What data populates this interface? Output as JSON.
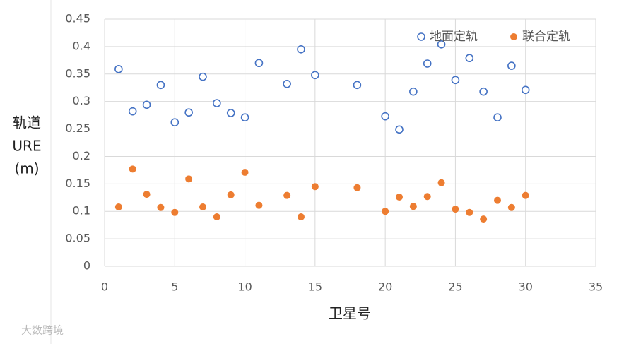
{
  "chart_data": {
    "type": "scatter",
    "y_label": [
      "轨道",
      "URE",
      "(m)"
    ],
    "x_label": "卫星号",
    "watermark": "大数跨境",
    "x": [
      1,
      2,
      3,
      4,
      5,
      6,
      7,
      8,
      9,
      10,
      11,
      13,
      14,
      15,
      18,
      20,
      21,
      22,
      23,
      24,
      25,
      26,
      27,
      28,
      29,
      30
    ],
    "series": [
      {
        "name": "地面定轨",
        "color": "#4472c4",
        "marker": "hollow",
        "values": [
          0.359,
          0.282,
          0.294,
          0.33,
          0.262,
          0.28,
          0.345,
          0.297,
          0.279,
          0.271,
          0.37,
          0.332,
          0.395,
          0.348,
          0.33,
          0.273,
          0.249,
          0.318,
          0.369,
          0.404,
          0.339,
          0.379,
          0.318,
          0.271,
          0.365,
          0.321
        ]
      },
      {
        "name": "联合定轨",
        "color": "#ed7d31",
        "marker": "filled",
        "values": [
          0.108,
          0.177,
          0.131,
          0.107,
          0.098,
          0.159,
          0.108,
          0.09,
          0.13,
          0.171,
          0.111,
          0.129,
          0.09,
          0.145,
          0.143,
          0.1,
          0.126,
          0.109,
          0.127,
          0.152,
          0.104,
          0.098,
          0.086,
          0.12,
          0.107,
          0.129
        ]
      }
    ],
    "xlim": [
      0,
      35
    ],
    "xticks": [
      0,
      5,
      10,
      15,
      20,
      25,
      30,
      35
    ],
    "ylim": [
      0,
      0.45
    ],
    "yticks": [
      0,
      0.05,
      0.1,
      0.15,
      0.2,
      0.25,
      0.3,
      0.35,
      0.4,
      0.45
    ],
    "grid": true,
    "legend": "upper right"
  }
}
